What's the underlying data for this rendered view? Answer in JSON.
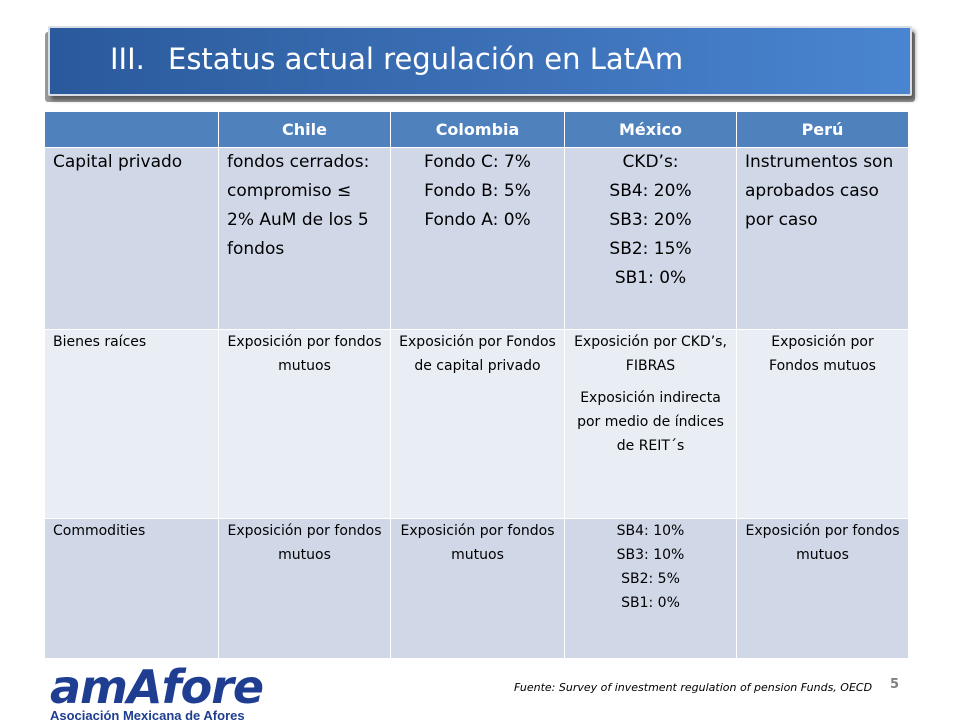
{
  "slide": {
    "title_number": "III.",
    "title": "Estatus actual regulación en LatAm",
    "page_number": "5",
    "source": "Fuente: Survey of investment regulation of pension Funds, OECD"
  },
  "logo": {
    "wordmark": "amAfore",
    "subtitle": "Asociación Mexicana de Afores"
  },
  "table": {
    "headers": [
      "",
      "Chile",
      "Colombia",
      "México",
      "Perú"
    ],
    "rows": [
      {
        "label": "Capital privado",
        "chile": [
          "fondos cerrados: compromiso ≤ 2% AuM de los 5 fondos"
        ],
        "colombia": [
          "Fondo C: 7%",
          "Fondo B: 5%",
          "Fondo A: 0%"
        ],
        "mexico": [
          "CKD’s:",
          "SB4: 20%",
          "SB3: 20%",
          "SB2: 15%",
          "SB1: 0%"
        ],
        "peru": [
          "Instrumentos son aprobados caso por caso"
        ]
      },
      {
        "label": "Bienes raíces",
        "chile": [
          "Exposición por fondos mutuos"
        ],
        "colombia": [
          "Exposición por Fondos de capital privado"
        ],
        "mexico": [
          "Exposición por CKD’s, FIBRAS",
          "Exposición indirecta por medio de índices de REIT´s"
        ],
        "peru": [
          "Exposición por Fondos mutuos"
        ]
      },
      {
        "label": "Commodities",
        "chile": [
          "Exposición por fondos mutuos"
        ],
        "colombia": [
          "Exposición por fondos mutuos"
        ],
        "mexico": [
          "SB4: 10%",
          "SB3: 10%",
          "SB2: 5%",
          "SB1: 0%"
        ],
        "peru": [
          "Exposición por fondos mutuos"
        ]
      }
    ]
  }
}
